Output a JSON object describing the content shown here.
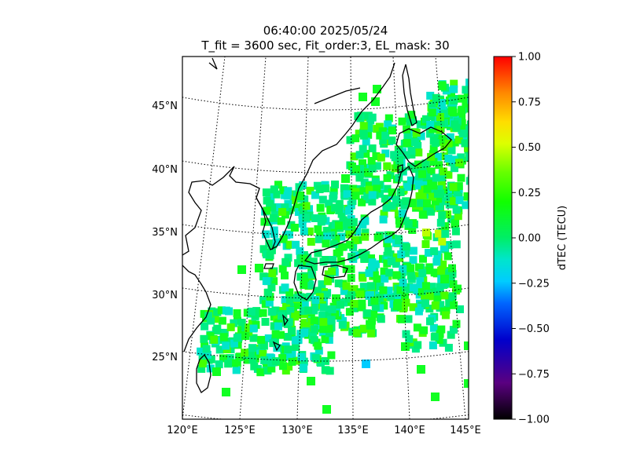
{
  "title": "06:40:00 2025/05/24",
  "subtitle": "T_fit = 3600 sec, Fit_order:3, EL_mask: 30",
  "map": {
    "lon_labels": [
      "120°E",
      "125°E",
      "130°E",
      "135°E",
      "140°E",
      "145°E"
    ],
    "lat_labels": [
      "45°N",
      "40°N",
      "35°N",
      "30°N",
      "25°N"
    ],
    "lon_range": [
      120,
      145
    ],
    "lat_range": [
      20,
      48
    ],
    "coastline_color": "#000000",
    "gridline_style": "dotted"
  },
  "colorbar": {
    "label": "dTEC (TECU)",
    "colormap": "nipy_spectral-like",
    "range": [
      -1.0,
      1.0
    ],
    "ticks": [
      "1.00",
      "0.75",
      "0.50",
      "0.25",
      "0.00",
      "−0.25",
      "−0.50",
      "−0.75",
      "−1.00"
    ]
  },
  "chart_data": {
    "type": "heatmap",
    "description_units": "dTEC (TECU)",
    "dominant_value_range": [
      -0.2,
      0.3
    ],
    "peak_region": "around 35°N, 138–142°E slight positive (yellow-green ~0.4)"
  }
}
